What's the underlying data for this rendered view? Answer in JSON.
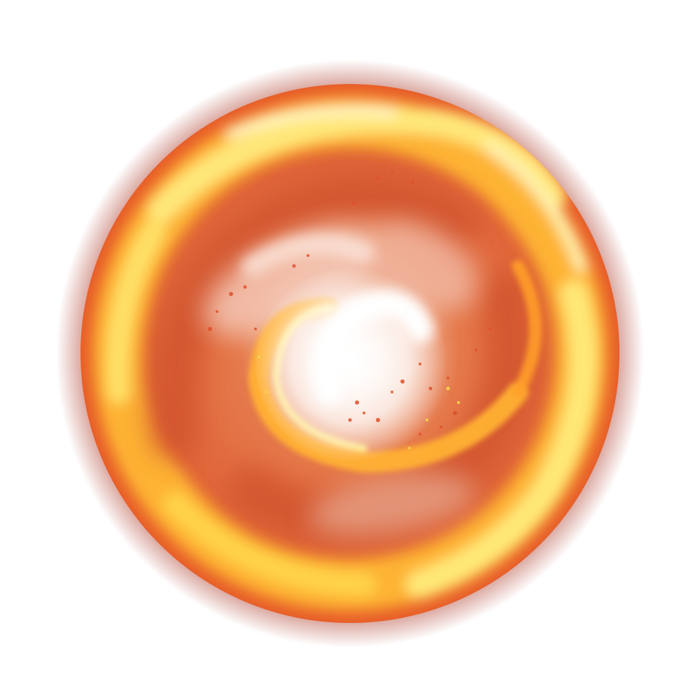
{
  "image": {
    "subject": "fire-vortex",
    "background_color": "#ffffff",
    "palette": {
      "outer_haze": "#b34a3a",
      "rim_orange": "#e8652a",
      "flame_yellow": "#ffe14a",
      "flame_white": "#fffbe0",
      "body_orange": "#e06a3a",
      "core_white": "#ffffff",
      "ember": "#e0502a"
    },
    "spiral_arms": 2,
    "swirl_direction": "clockwise"
  }
}
